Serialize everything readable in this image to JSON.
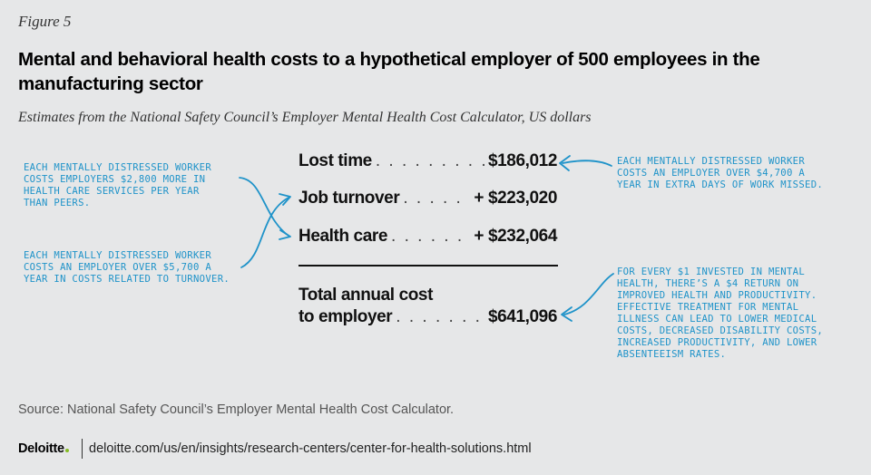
{
  "figure_label": "Figure 5",
  "title": "Mental and behavioral health costs to a hypothetical employer of 500 employees in the manufacturing sector",
  "subtitle": "Estimates from the National Safety Council’s Employer Mental Health Cost Calculator, US dollars",
  "table": {
    "lost_time": {
      "label": "Lost time",
      "value": "$186,012"
    },
    "job_turnover": {
      "label": "Job turnover",
      "value": "+ $223,020"
    },
    "health_care": {
      "label": "Health care",
      "value": "+ $232,064"
    },
    "total": {
      "label_line1": "Total annual cost",
      "label_line2": "to employer",
      "value": "$641,096"
    }
  },
  "notes": {
    "health_care": "Each mentally distressed worker\ncosts employers $2,800 more in\nhealth care services per year\nthan peers.",
    "turnover": "Each mentally distressed worker\ncosts an employer over $5,700 a\nyear in costs related to turnover.",
    "lost_time": "Each mentally distressed worker\ncosts an employer over $4,700 a\nyear in extra days of work missed.",
    "investment": "For every $1 invested in mental\nhealth, there’s a $4 return on\nimproved health and productivity.\nEffective treatment for mental\nillness can lead to lower medical\ncosts, decreased disability costs,\nincreased productivity, and lower\nabsenteeism rates."
  },
  "accent_color": "#1f93c9",
  "source": "Source: National Safety Council’s Employer Mental Health Cost Calculator.",
  "footer": {
    "brand": "Deloitte",
    "brand_dot_color": "#86bc25",
    "url": "deloitte.com/us/en/insights/research-centers/center-for-health-solutions.html"
  }
}
